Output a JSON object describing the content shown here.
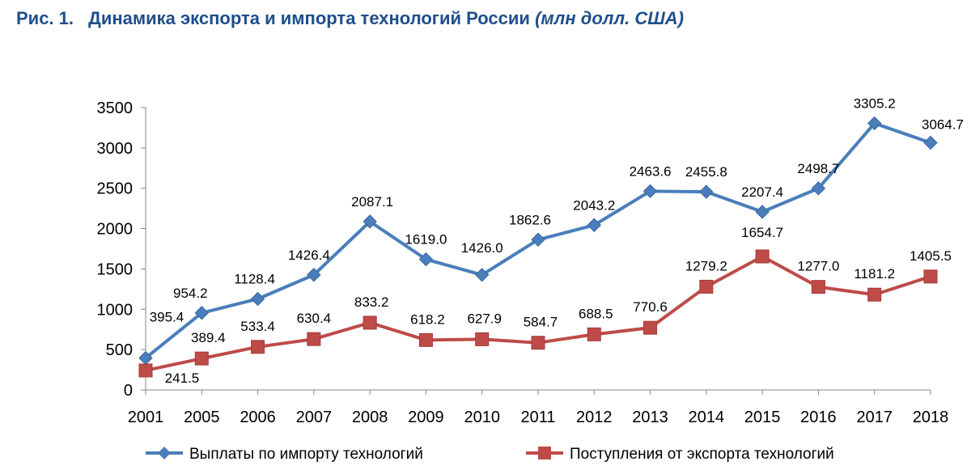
{
  "figure": {
    "number": "Рис. 1.",
    "title": "Динамика экспорта и импорта технологий России",
    "unit": "(млн долл. США)"
  },
  "chart_data": {
    "type": "line",
    "title": "Динамика экспорта и импорта технологий России",
    "xlabel": "",
    "ylabel": "",
    "ylim": [
      0,
      3500
    ],
    "yticks": [
      0,
      500,
      1000,
      1500,
      2000,
      2500,
      3000,
      3500
    ],
    "categories": [
      "2001",
      "2005",
      "2006",
      "2007",
      "2008",
      "2009",
      "2010",
      "2011",
      "2012",
      "2013",
      "2014",
      "2015",
      "2016",
      "2017",
      "2018"
    ],
    "grid": false,
    "legend_position": "bottom",
    "series": [
      {
        "name": "Выплаты по импорту технологий",
        "color": "#4a7ebb",
        "marker": "diamond",
        "values": [
          395.4,
          954.2,
          1128.4,
          1426.4,
          2087.1,
          1619.0,
          1426.0,
          1862.6,
          2043.2,
          2463.6,
          2455.8,
          2207.4,
          2498.7,
          3305.2,
          3064.7
        ],
        "labels": [
          "395.4",
          "954.2",
          "1128.4",
          "1426.4",
          "2087.1",
          "1619.0",
          "1426.0",
          "1862.6",
          "2043.2",
          "2463.6",
          "2455.8",
          "2207.4",
          "2498.7",
          "3305.2",
          "3064.7"
        ]
      },
      {
        "name": "Поступления от экспорта технологий",
        "color": "#be4b48",
        "marker": "square",
        "values": [
          241.5,
          389.4,
          533.4,
          630.4,
          833.2,
          618.2,
          627.9,
          584.7,
          688.5,
          770.6,
          1279.2,
          1654.7,
          1277.0,
          1181.2,
          1405.5
        ],
        "labels": [
          "241.5",
          "389.4",
          "533.4",
          "630.4",
          "833.2",
          "618.2",
          "627.9",
          "584.7",
          "688.5",
          "770.6",
          "1279.2",
          "1654.7",
          "1277.0",
          "1181.2",
          "1405.5"
        ]
      }
    ]
  }
}
